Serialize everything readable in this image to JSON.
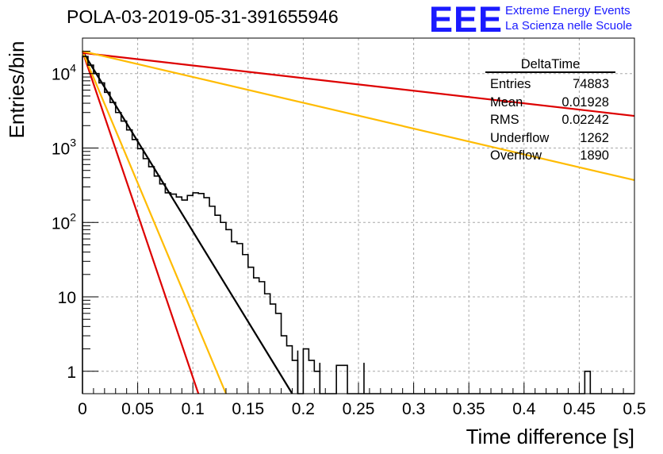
{
  "title": "POLA-03-2019-05-31-391655946",
  "logo": {
    "text": "EEE",
    "line1": "Extreme Energy Events",
    "line2": "La Scienza nelle Scuole",
    "color": "#1a1aff"
  },
  "stats": {
    "name": "DeltaTime",
    "rows": [
      {
        "label": "Entries",
        "value": "74883"
      },
      {
        "label": "Mean",
        "value": "0.01928"
      },
      {
        "label": "RMS",
        "value": "0.02242"
      },
      {
        "label": "Underflow",
        "value": "1262"
      },
      {
        "label": "Overflow",
        "value": "1890"
      }
    ]
  },
  "chart_data": {
    "type": "line",
    "xlabel": "Time difference [s]",
    "ylabel": "Entries/bin",
    "xlim": [
      0,
      0.5
    ],
    "ylim": [
      0.5,
      30000
    ],
    "yscale": "log",
    "grid": true,
    "x_ticks": [
      "0",
      "0.05",
      "0.1",
      "0.15",
      "0.2",
      "0.25",
      "0.3",
      "0.35",
      "0.4",
      "0.45",
      "0.5"
    ],
    "y_ticks": [
      {
        "value": 1,
        "base": "1",
        "exp": ""
      },
      {
        "value": 10,
        "base": "10",
        "exp": ""
      },
      {
        "value": 100,
        "base": "10",
        "exp": "2"
      },
      {
        "value": 1000,
        "base": "10",
        "exp": "3"
      },
      {
        "value": 10000,
        "base": "10",
        "exp": "4"
      }
    ],
    "histogram": {
      "bin_width": 0.005,
      "color": "#000000",
      "values": [
        17000,
        13000,
        10000,
        7500,
        5600,
        4100,
        3000,
        2300,
        1750,
        1300,
        980,
        720,
        560,
        420,
        330,
        250,
        240,
        220,
        200,
        230,
        250,
        245,
        215,
        165,
        125,
        100,
        80,
        55,
        52,
        37,
        25,
        18,
        16,
        11,
        8,
        6,
        3,
        2.2,
        1.4,
        0.3,
        2,
        1.4,
        1,
        0.3,
        0.3,
        0.3,
        1.2,
        1.2,
        0.3,
        0.3,
        0.3,
        0.3,
        0.3,
        0.3,
        0.3,
        0.3,
        0.3,
        0.3,
        0.3,
        0.3,
        0.3,
        0.3,
        0.3,
        0.3,
        0.3,
        0.3,
        0.3,
        0.3,
        0.3,
        0.3,
        0.3,
        0.3,
        0.3,
        0.3,
        0.3,
        0.3,
        0.3,
        0.3,
        0.3,
        0.3,
        0.3,
        0.3,
        0.3,
        0.3,
        0.3,
        0.3,
        0.3,
        0.3,
        0.3,
        0.3,
        0.3,
        1,
        0.3,
        0.3,
        0.3,
        0.3,
        0.3,
        0.3,
        0.3,
        0.3
      ],
      "spikes": [
        {
          "x": 0.195,
          "value": 1.9
        },
        {
          "x": 0.215,
          "value": 1.3
        },
        {
          "x": 0.255,
          "value": 1.3
        }
      ]
    },
    "fits": [
      {
        "color": "#000000",
        "x": [
          0,
          0.19
        ],
        "y": [
          20000,
          0.5
        ]
      },
      {
        "color": "#dd0000",
        "x": [
          0,
          0.105
        ],
        "y": [
          20000,
          0.5
        ]
      },
      {
        "color": "#ffbb00",
        "x": [
          0,
          0.13
        ],
        "y": [
          20000,
          0.5
        ]
      },
      {
        "color": "#dd0000",
        "x": [
          0,
          0.5
        ],
        "y": [
          19000,
          2700
        ]
      },
      {
        "color": "#ffbb00",
        "x": [
          0,
          0.5
        ],
        "y": [
          20000,
          370
        ]
      }
    ]
  }
}
